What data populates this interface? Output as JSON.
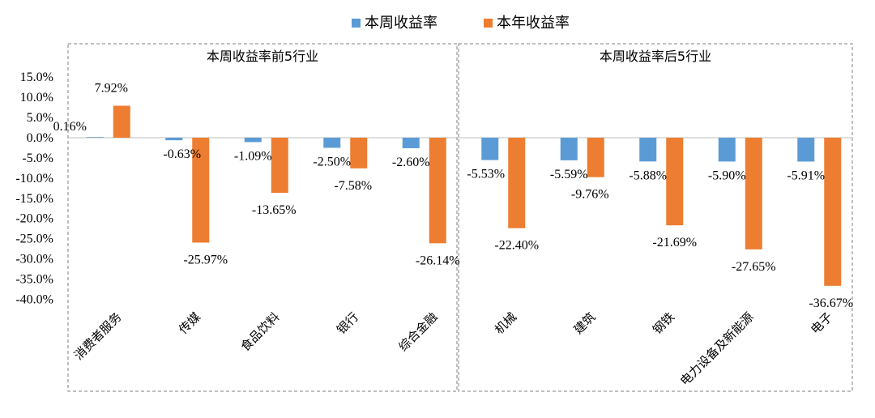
{
  "chart_data": {
    "type": "bar",
    "legend": {
      "position": "top",
      "entries": [
        "本周收益率",
        "本年收益率"
      ]
    },
    "colors": {
      "weekly": "#5b9bd5",
      "yearly": "#ed7d31",
      "axis": "#bfbfbf",
      "box": "#7f7f7f"
    },
    "yaxis": {
      "ylim": [
        -40,
        15
      ],
      "ticks": [
        "15.0%",
        "10.0%",
        "5.0%",
        "0.0%",
        "-5.0%",
        "-10.0%",
        "-15.0%",
        "-20.0%",
        "-25.0%",
        "-30.0%",
        "-35.0%",
        "-40.0%"
      ],
      "tick_values": [
        15,
        10,
        5,
        0,
        -5,
        -10,
        -15,
        -20,
        -25,
        -30,
        -35,
        -40
      ],
      "grid": false
    },
    "groups": [
      {
        "title": "本周收益率前5行业",
        "first": 0,
        "last": 4
      },
      {
        "title": "本周收益率后5行业",
        "first": 5,
        "last": 9
      }
    ],
    "categories": [
      "消费者服务",
      "传媒",
      "食品饮料",
      "银行",
      "综合金融",
      "机械",
      "建筑",
      "钢铁",
      "电力设备及新能源",
      "电子"
    ],
    "series": [
      {
        "name": "本周收益率",
        "values": [
          0.16,
          -0.63,
          -1.09,
          -2.5,
          -2.6,
          -5.53,
          -5.59,
          -5.88,
          -5.9,
          -5.91
        ],
        "labels": [
          "0.16%",
          "-0.63%",
          "-1.09%",
          "-2.50%",
          "-2.60%",
          "-5.53%",
          "-5.59%",
          "-5.88%",
          "-5.90%",
          "-5.91%"
        ]
      },
      {
        "name": "本年收益率",
        "values": [
          7.92,
          -25.97,
          -13.65,
          -7.58,
          -26.14,
          -22.4,
          -9.76,
          -21.69,
          -27.65,
          -36.67
        ],
        "labels": [
          "7.92%",
          "-25.97%",
          "-13.65%",
          "-7.58%",
          "-26.14%",
          "-22.40%",
          "-9.76%",
          "-21.69%",
          "-27.65%",
          "-36.67%"
        ]
      }
    ]
  }
}
